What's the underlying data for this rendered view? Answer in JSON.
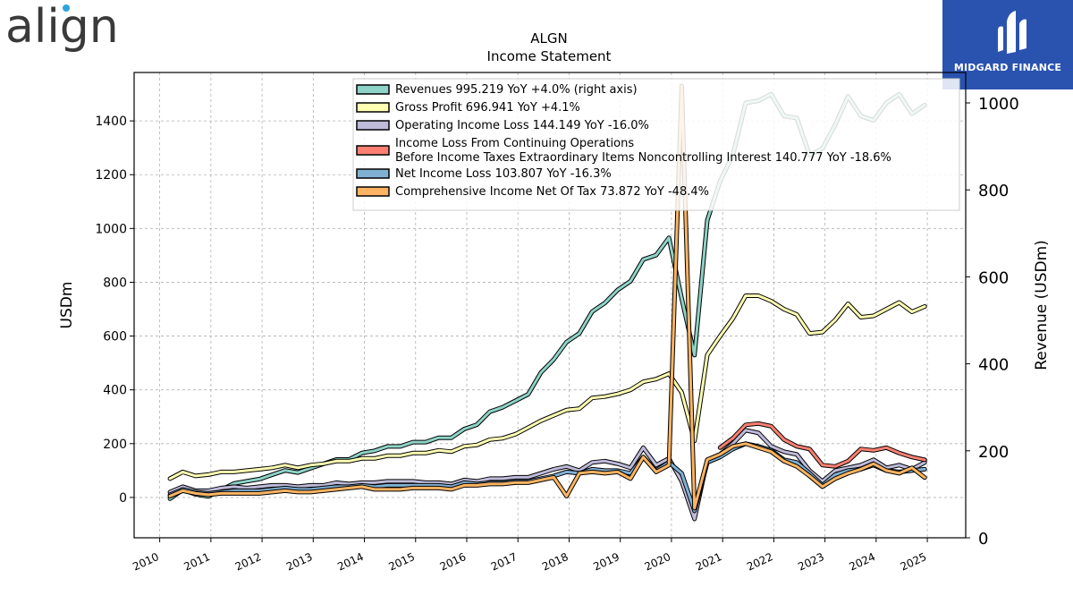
{
  "brand": {
    "logo_text": "align",
    "badge_text": "MIDGARD FINANCE"
  },
  "chart_data": {
    "type": "line",
    "title": "ALGN",
    "subtitle": "Income Statement",
    "ylabel": "USDm",
    "ylabel_right": "Revenue (USDm)",
    "ylim": [
      -150,
      1580
    ],
    "ylim_right": [
      0,
      1070
    ],
    "yticks": [
      0,
      200,
      400,
      600,
      800,
      1000,
      1200,
      1400
    ],
    "yticks_right": [
      0,
      200,
      400,
      600,
      800,
      1000
    ],
    "xlim": [
      2009.5,
      2025.75
    ],
    "xticks": [
      "2010",
      "2011",
      "2012",
      "2013",
      "2014",
      "2015",
      "2016",
      "2017",
      "2018",
      "2019",
      "2020",
      "2021",
      "2022",
      "2023",
      "2024",
      "2025"
    ],
    "grid": true,
    "legend_position": "top",
    "series": [
      {
        "name": "Revenues",
        "legend": "Revenues  995.219 YoY +4.0% (right axis)",
        "color": "#8dd3c7",
        "axis": "right",
        "x": [
          2010.2,
          2010.45,
          2010.7,
          2010.95,
          2011.2,
          2011.45,
          2011.7,
          2011.95,
          2012.2,
          2012.45,
          2012.7,
          2012.95,
          2013.2,
          2013.45,
          2013.7,
          2013.95,
          2014.2,
          2014.45,
          2014.7,
          2014.95,
          2015.2,
          2015.45,
          2015.7,
          2015.95,
          2016.2,
          2016.45,
          2016.7,
          2016.95,
          2017.2,
          2017.45,
          2017.7,
          2017.95,
          2018.2,
          2018.45,
          2018.7,
          2018.95,
          2019.2,
          2019.45,
          2019.7,
          2019.95,
          2020.2,
          2020.45,
          2020.7,
          2020.95,
          2021.2,
          2021.45,
          2021.7,
          2021.95,
          2022.2,
          2022.45,
          2022.7,
          2022.95,
          2023.2,
          2023.45,
          2023.7,
          2023.95,
          2024.2,
          2024.45,
          2024.7,
          2024.95
        ],
        "values": [
          90,
          110,
          100,
          95,
          110,
          125,
          130,
          135,
          145,
          155,
          150,
          160,
          170,
          180,
          180,
          195,
          200,
          210,
          210,
          220,
          220,
          230,
          230,
          250,
          260,
          290,
          300,
          315,
          330,
          380,
          410,
          450,
          470,
          520,
          540,
          570,
          590,
          640,
          650,
          690,
          550,
          420,
          730,
          820,
          880,
          1000,
          1005,
          1020,
          970,
          965,
          880,
          895,
          950,
          1015,
          970,
          960,
          1000,
          1020,
          975,
          995
        ]
      },
      {
        "name": "Gross Profit",
        "legend": "Gross Profit  696.941 YoY +4.1%",
        "color": "#ffffb3",
        "axis": "left",
        "x": [
          2010.2,
          2010.45,
          2010.7,
          2010.95,
          2011.2,
          2011.45,
          2011.7,
          2011.95,
          2012.2,
          2012.45,
          2012.7,
          2012.95,
          2013.2,
          2013.45,
          2013.7,
          2013.95,
          2014.2,
          2014.45,
          2014.7,
          2014.95,
          2015.2,
          2015.45,
          2015.7,
          2015.95,
          2016.2,
          2016.45,
          2016.7,
          2016.95,
          2017.2,
          2017.45,
          2017.7,
          2017.95,
          2018.2,
          2018.45,
          2018.7,
          2018.95,
          2019.2,
          2019.45,
          2019.7,
          2019.95,
          2020.2,
          2020.45,
          2020.7,
          2020.95,
          2021.2,
          2021.45,
          2021.7,
          2021.95,
          2022.2,
          2022.45,
          2022.7,
          2022.95,
          2023.2,
          2023.45,
          2023.7,
          2023.95,
          2024.2,
          2024.45,
          2024.7,
          2024.95
        ],
        "values": [
          70,
          95,
          80,
          85,
          95,
          95,
          100,
          105,
          110,
          120,
          110,
          120,
          125,
          135,
          135,
          145,
          145,
          155,
          155,
          165,
          165,
          175,
          170,
          190,
          195,
          215,
          220,
          235,
          260,
          285,
          305,
          325,
          330,
          370,
          375,
          385,
          400,
          430,
          440,
          460,
          390,
          210,
          530,
          600,
          665,
          750,
          750,
          730,
          700,
          680,
          610,
          615,
          660,
          720,
          670,
          675,
          700,
          725,
          690,
          710
        ]
      },
      {
        "name": "Operating Income Loss",
        "legend": "Operating Income Loss  144.149 YoY -16.0%",
        "color": "#bebada",
        "axis": "left",
        "x": [
          2010.2,
          2010.45,
          2010.7,
          2010.95,
          2011.2,
          2011.45,
          2011.7,
          2011.95,
          2012.2,
          2012.45,
          2012.7,
          2012.95,
          2013.2,
          2013.45,
          2013.7,
          2013.95,
          2014.2,
          2014.45,
          2014.7,
          2014.95,
          2015.2,
          2015.45,
          2015.7,
          2015.95,
          2016.2,
          2016.45,
          2016.7,
          2016.95,
          2017.2,
          2017.45,
          2017.7,
          2017.95,
          2018.2,
          2018.45,
          2018.7,
          2018.95,
          2019.2,
          2019.45,
          2019.7,
          2019.95,
          2020.2,
          2020.45,
          2020.7,
          2020.95,
          2021.2,
          2021.45,
          2021.7,
          2021.95,
          2022.2,
          2022.45,
          2022.7,
          2022.95,
          2023.2,
          2023.45,
          2023.7,
          2023.95,
          2024.2,
          2024.45,
          2024.7,
          2024.95
        ],
        "values": [
          20,
          40,
          25,
          25,
          35,
          40,
          35,
          40,
          45,
          45,
          40,
          45,
          45,
          55,
          50,
          55,
          55,
          60,
          60,
          60,
          55,
          55,
          50,
          65,
          60,
          70,
          70,
          75,
          75,
          90,
          105,
          115,
          100,
          130,
          135,
          125,
          110,
          185,
          120,
          145,
          60,
          -80,
          140,
          160,
          200,
          250,
          240,
          190,
          170,
          160,
          100,
          60,
          100,
          110,
          120,
          140,
          110,
          120,
          105,
          130
        ]
      },
      {
        "name": "Income Loss From Continuing Operations Before Income Taxes Extraordinary Items Noncontrolling Interest",
        "legend": "Income Loss From Continuing Operations\nBefore Income Taxes Extraordinary Items Noncontrolling Interest  140.777 YoY -18.6%",
        "color": "#fb8072",
        "axis": "left",
        "x": [
          2020.95,
          2021.2,
          2021.45,
          2021.7,
          2021.95,
          2022.2,
          2022.45,
          2022.7,
          2022.95,
          2023.2,
          2023.45,
          2023.7,
          2023.95,
          2024.2,
          2024.45,
          2024.7,
          2024.95
        ],
        "values": [
          185,
          220,
          270,
          275,
          265,
          215,
          190,
          180,
          120,
          115,
          135,
          180,
          175,
          185,
          165,
          150,
          140
        ]
      },
      {
        "name": "Net Income Loss",
        "legend": "Net Income Loss  103.807 YoY -16.3%",
        "color": "#80b1d3",
        "axis": "left",
        "x": [
          2010.2,
          2010.45,
          2010.7,
          2010.95,
          2011.2,
          2011.45,
          2011.7,
          2011.95,
          2012.2,
          2012.45,
          2012.7,
          2012.95,
          2013.2,
          2013.45,
          2013.7,
          2013.95,
          2014.2,
          2014.45,
          2014.7,
          2014.95,
          2015.2,
          2015.45,
          2015.7,
          2015.95,
          2016.2,
          2016.45,
          2016.7,
          2016.95,
          2017.2,
          2017.45,
          2017.7,
          2017.95,
          2018.2,
          2018.45,
          2018.7,
          2018.95,
          2019.2,
          2019.45,
          2019.7,
          2019.95,
          2020.2,
          2020.45,
          2020.7,
          2020.95,
          2021.2,
          2021.45,
          2021.7,
          2021.95,
          2022.2,
          2022.45,
          2022.7,
          2022.95,
          2023.2,
          2023.45,
          2023.7,
          2023.95,
          2024.2,
          2024.45,
          2024.7,
          2024.95
        ],
        "values": [
          10,
          30,
          20,
          15,
          20,
          25,
          25,
          25,
          30,
          35,
          30,
          30,
          35,
          40,
          40,
          45,
          40,
          45,
          45,
          45,
          45,
          45,
          40,
          55,
          50,
          55,
          55,
          60,
          60,
          70,
          80,
          95,
          90,
          105,
          100,
          100,
          90,
          150,
          100,
          130,
          90,
          -50,
          130,
          150,
          180,
          200,
          190,
          175,
          140,
          130,
          90,
          45,
          85,
          100,
          105,
          120,
          100,
          95,
          100,
          105
        ]
      },
      {
        "name": "Comprehensive Income Net Of Tax",
        "legend": "Comprehensive Income Net Of Tax  73.872 YoY -48.4%",
        "color": "#fdb462",
        "axis": "left",
        "x": [
          2010.2,
          2010.45,
          2010.7,
          2010.95,
          2011.2,
          2011.45,
          2011.7,
          2011.95,
          2012.2,
          2012.45,
          2012.7,
          2012.95,
          2013.2,
          2013.45,
          2013.7,
          2013.95,
          2014.2,
          2014.45,
          2014.7,
          2014.95,
          2015.2,
          2015.45,
          2015.7,
          2015.95,
          2016.2,
          2016.45,
          2016.7,
          2016.95,
          2017.2,
          2017.45,
          2017.7,
          2017.95,
          2018.2,
          2018.45,
          2018.7,
          2018.95,
          2019.2,
          2019.45,
          2019.7,
          2019.95,
          2020.2,
          2020.45,
          2020.7,
          2020.95,
          2021.2,
          2021.45,
          2021.7,
          2021.95,
          2022.2,
          2022.45,
          2022.7,
          2022.95,
          2023.2,
          2023.45,
          2023.7,
          2023.95,
          2024.2,
          2024.45,
          2024.7,
          2024.95
        ],
        "values": [
          5,
          25,
          15,
          10,
          15,
          15,
          15,
          15,
          20,
          25,
          20,
          20,
          25,
          30,
          35,
          40,
          30,
          30,
          30,
          35,
          35,
          35,
          30,
          45,
          45,
          50,
          50,
          55,
          55,
          65,
          75,
          5,
          90,
          95,
          90,
          95,
          70,
          150,
          95,
          120,
          1530,
          -40,
          140,
          160,
          190,
          200,
          185,
          170,
          135,
          115,
          80,
          40,
          70,
          90,
          105,
          125,
          100,
          90,
          110,
          74
        ]
      }
    ]
  }
}
